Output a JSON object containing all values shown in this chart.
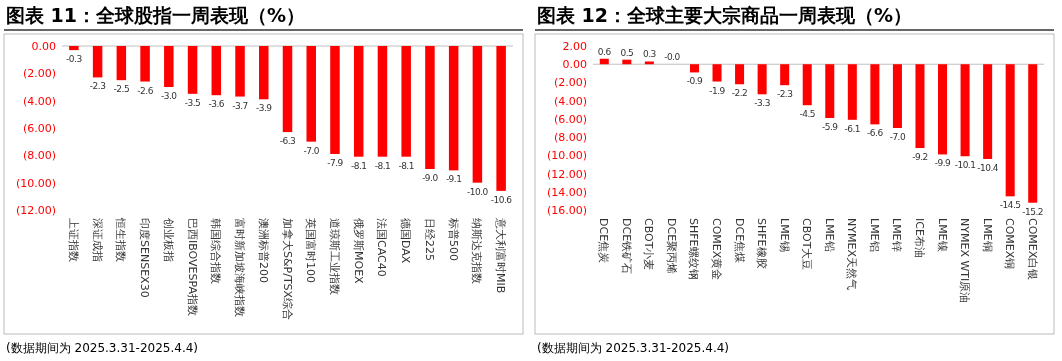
{
  "chart_data": [
    {
      "type": "bar",
      "title": "图表 11：全球股指一周表现（%）",
      "color": "#ff0000",
      "categories": [
        "上证指数",
        "深证成指",
        "恒生指数",
        "印度SENSEX30",
        "创业板指",
        "巴西IBOVESPA指数",
        "韩国综合指数",
        "富时新加坡海峡指数",
        "澳洲标普200",
        "加拿大S&P/TSX综合",
        "英国富时100",
        "道琼斯工业指数",
        "俄罗斯MOEX",
        "法国CAC40",
        "德国DAX",
        "日经225",
        "标普500",
        "纳斯达克指数",
        "意大利富时MIB"
      ],
      "values": [
        -0.3,
        -2.3,
        -2.5,
        -2.6,
        -3.0,
        -3.5,
        -3.6,
        -3.7,
        -3.9,
        -6.3,
        -7.0,
        -7.9,
        -8.1,
        -8.1,
        -8.1,
        -9.0,
        -9.1,
        -10.0,
        -10.6
      ],
      "value_labels": [
        "-0.3",
        "-2.3",
        "-2.5",
        "-2.6",
        "-3.0",
        "-3.5",
        "-3.6",
        "-3.7",
        "-3.9",
        "-6.3",
        "-7.0",
        "-7.9",
        "-8.1",
        "-8.1",
        "-8.1",
        "-9.0",
        "-9.1",
        "-10.0",
        "-10.6"
      ],
      "ylim": [
        -12,
        0
      ],
      "yticks": [
        {
          "value": 0,
          "label": "0.00"
        },
        {
          "value": -2,
          "label": "(2.00)"
        },
        {
          "value": -4,
          "label": "(4.00)"
        },
        {
          "value": -6,
          "label": "(6.00)"
        },
        {
          "value": -8,
          "label": "(8.00)"
        },
        {
          "value": -10,
          "label": "(10.00)"
        },
        {
          "value": -12,
          "label": "(12.00)"
        }
      ],
      "annotations": [
        "(数据期间为 2025.3.31-2025.4.4)"
      ]
    },
    {
      "type": "bar",
      "title": "图表 12：全球主要大宗商品一周表现（%）",
      "color": "#ff0000",
      "categories": [
        "DCE焦炭",
        "DCE铁矿石",
        "CBOT小麦",
        "DCE聚丙烯",
        "SHFE螺纹钢",
        "COMEX黄金",
        "DCE焦煤",
        "SHFE橡胶",
        "LME锡",
        "CBOT大豆",
        "LME铅",
        "NYMEX天然气",
        "LME铝",
        "LME锌",
        "ICE布油",
        "LME镍",
        "NYMEX WTI原油",
        "LME铜",
        "COMEX铜",
        "COMEX白银"
      ],
      "values": [
        0.6,
        0.5,
        0.3,
        -0.0,
        -0.9,
        -1.9,
        -2.2,
        -3.3,
        -2.3,
        -4.5,
        -5.9,
        -6.1,
        -6.6,
        -7.0,
        -9.2,
        -9.9,
        -10.1,
        -10.4,
        -14.5,
        -15.2
      ],
      "value_labels": [
        "0.6",
        "0.5",
        "0.3",
        "-0.0",
        "-0.9",
        "-1.9",
        "-2.2",
        "-3.3",
        "-2.3",
        "-4.5",
        "-5.9",
        "-6.1",
        "-6.6",
        "-7.0",
        "-9.2",
        "-9.9",
        "-10.1",
        "-10.4",
        "-14.5",
        "-15.2"
      ],
      "ylim": [
        -16,
        2
      ],
      "yticks": [
        {
          "value": 2,
          "label": "2.00"
        },
        {
          "value": 0,
          "label": "0.00"
        },
        {
          "value": -2,
          "label": "(2.00)"
        },
        {
          "value": -4,
          "label": "(4.00)"
        },
        {
          "value": -6,
          "label": "(6.00)"
        },
        {
          "value": -8,
          "label": "(8.00)"
        },
        {
          "value": -10,
          "label": "(10.00)"
        },
        {
          "value": -12,
          "label": "(12.00)"
        },
        {
          "value": -14,
          "label": "(14.00)"
        },
        {
          "value": -16,
          "label": "(16.00)"
        }
      ],
      "annotations": [
        "(数据期间为 2025.3.31-2025.4.4)"
      ]
    }
  ]
}
